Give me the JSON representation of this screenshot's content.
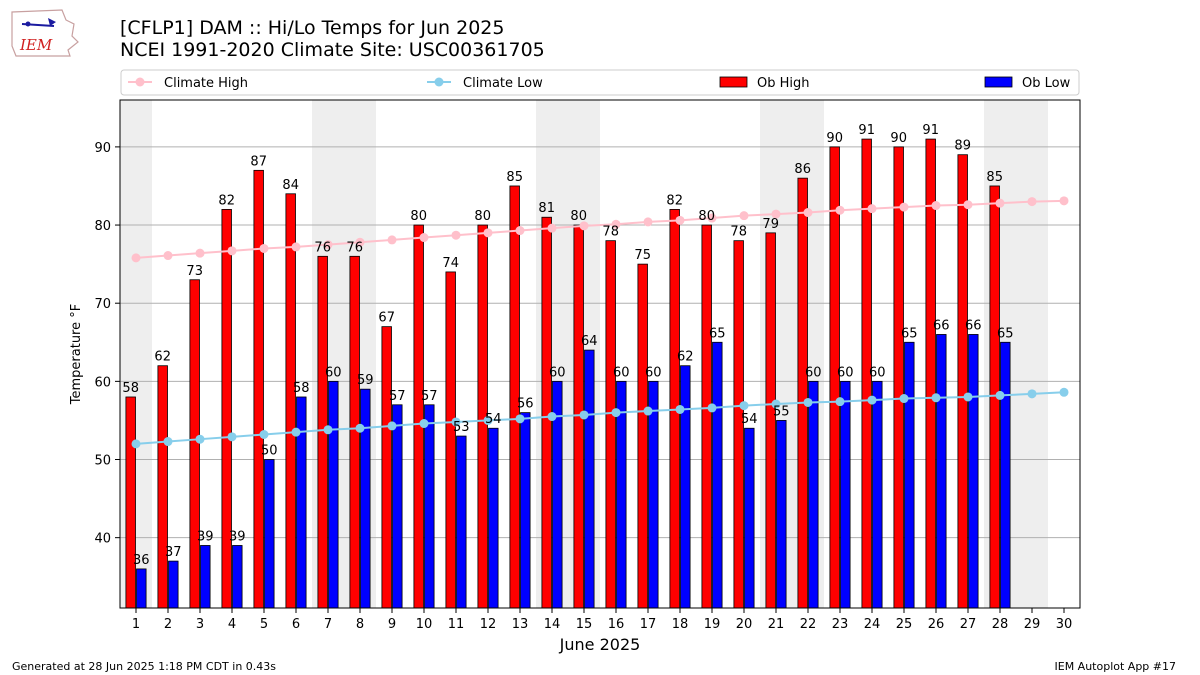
{
  "header": {
    "title_line1": "[CFLP1] DAM :: Hi/Lo Temps for Jun 2025",
    "title_line2": "NCEI 1991-2020 Climate Site: USC00361705",
    "logo_text": "IEM"
  },
  "footer": {
    "generated": "Generated at 28 Jun 2025 1:18 PM CDT in 0.43s",
    "app": "IEM Autoplot App #17"
  },
  "colors": {
    "ob_high": "#ff0000",
    "ob_low": "#0000ff",
    "climate_high": "#ffc0cb",
    "climate_low": "#87ceeb",
    "weekend_shade": "#eeeeee",
    "grid": "#b0b0b0"
  },
  "chart_data": {
    "type": "bar",
    "xlabel": "June 2025",
    "ylabel": "Temperature °F",
    "ylim": [
      31,
      96
    ],
    "yticks": [
      40,
      50,
      60,
      70,
      80,
      90
    ],
    "grid": "horizontal",
    "legend_placement": "top",
    "categories": [
      "1",
      "2",
      "3",
      "4",
      "5",
      "6",
      "7",
      "8",
      "9",
      "10",
      "11",
      "12",
      "13",
      "14",
      "15",
      "16",
      "17",
      "18",
      "19",
      "20",
      "21",
      "22",
      "23",
      "24",
      "25",
      "26",
      "27",
      "28",
      "29",
      "30"
    ],
    "shaded_days": [
      1,
      7,
      8,
      14,
      15,
      21,
      22,
      28,
      29
    ],
    "series": [
      {
        "name": "Ob High",
        "kind": "bar",
        "values": [
          58,
          62,
          73,
          82,
          87,
          84,
          76,
          76,
          67,
          80,
          74,
          80,
          85,
          81,
          80,
          78,
          75,
          82,
          80,
          78,
          79,
          86,
          90,
          91,
          90,
          91,
          89,
          85,
          null,
          null
        ]
      },
      {
        "name": "Ob Low",
        "kind": "bar",
        "values": [
          36,
          37,
          39,
          39,
          50,
          58,
          60,
          59,
          57,
          57,
          53,
          54,
          56,
          60,
          64,
          60,
          60,
          62,
          65,
          54,
          55,
          60,
          60,
          60,
          65,
          66,
          66,
          65,
          null,
          null
        ]
      },
      {
        "name": "Climate High",
        "kind": "line",
        "values": [
          75.8,
          76.1,
          76.4,
          76.7,
          77.0,
          77.2,
          77.5,
          77.8,
          78.1,
          78.4,
          78.7,
          79.0,
          79.3,
          79.6,
          79.9,
          80.1,
          80.4,
          80.6,
          80.9,
          81.2,
          81.4,
          81.6,
          81.9,
          82.1,
          82.3,
          82.5,
          82.6,
          82.8,
          83.0,
          83.1
        ]
      },
      {
        "name": "Climate Low",
        "kind": "line",
        "values": [
          52.0,
          52.3,
          52.6,
          52.9,
          53.2,
          53.5,
          53.8,
          54.0,
          54.3,
          54.6,
          54.8,
          55.0,
          55.2,
          55.5,
          55.7,
          56.0,
          56.2,
          56.4,
          56.6,
          56.9,
          57.1,
          57.3,
          57.4,
          57.6,
          57.8,
          57.9,
          58.0,
          58.2,
          58.4,
          58.6
        ]
      }
    ]
  }
}
